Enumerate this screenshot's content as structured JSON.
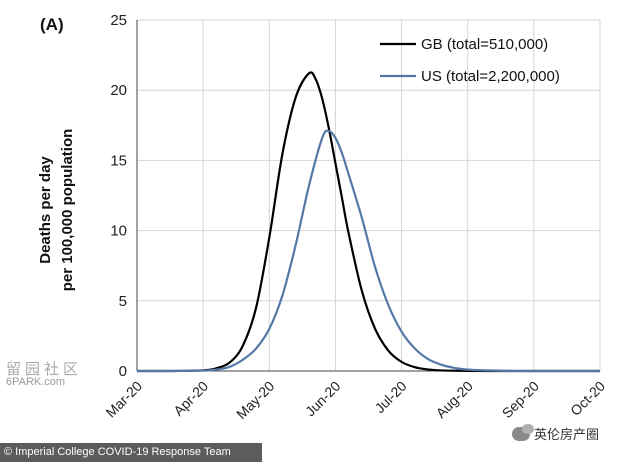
{
  "chart_data": {
    "type": "line",
    "panel_label": "(A)",
    "ylabel_line1": "Deaths per day",
    "ylabel_line2": "per 100,000 population",
    "ylim": [
      0,
      25
    ],
    "y_ticks": [
      "0",
      "5",
      "10",
      "15",
      "20",
      "25"
    ],
    "x_ticks": [
      "Mar-20",
      "Apr-20",
      "May-20",
      "Jun-20",
      "Jul-20",
      "Aug-20",
      "Sep-20",
      "Oct-20"
    ],
    "x_unit": "months since Mar-20",
    "grid": true,
    "legend_position": "top-right",
    "series": [
      {
        "name": "GB (total=510,000)",
        "color": "#000000",
        "x": [
          0,
          0.5,
          1.0,
          1.2,
          1.4,
          1.6,
          1.8,
          2.0,
          2.2,
          2.4,
          2.6,
          2.7,
          2.8,
          2.9,
          3.0,
          3.1,
          3.2,
          3.4,
          3.6,
          3.8,
          4.0,
          4.2,
          4.4,
          4.6,
          5.0,
          5.5,
          6.0,
          7.0
        ],
        "values": [
          0,
          0.0,
          0.05,
          0.2,
          0.6,
          1.8,
          4.5,
          9.5,
          15.5,
          19.5,
          21.2,
          20.8,
          19.4,
          17.3,
          14.8,
          12.3,
          9.8,
          5.7,
          3.0,
          1.45,
          0.65,
          0.27,
          0.11,
          0.04,
          0.01,
          0,
          0,
          0
        ]
      },
      {
        "name": "US (total=2,200,000)",
        "color": "#5478a6",
        "x": [
          0,
          0.5,
          1.0,
          1.2,
          1.4,
          1.6,
          1.8,
          2.0,
          2.2,
          2.4,
          2.6,
          2.8,
          2.9,
          3.0,
          3.1,
          3.2,
          3.4,
          3.6,
          3.8,
          4.0,
          4.2,
          4.4,
          4.6,
          4.8,
          5.0,
          5.5,
          6.0,
          7.0
        ],
        "values": [
          0,
          0.0,
          0.03,
          0.1,
          0.3,
          0.8,
          1.6,
          3.0,
          5.4,
          9.0,
          13.2,
          16.6,
          17.1,
          16.6,
          15.5,
          14.0,
          10.9,
          7.4,
          4.7,
          2.8,
          1.6,
          0.85,
          0.45,
          0.22,
          0.1,
          0.02,
          0,
          0
        ]
      }
    ]
  },
  "watermarks": {
    "credit": "© Imperial College COVID-19 Response Team",
    "site_cn": "留园社区",
    "site_en": "6PARK.com",
    "account": "英伦房产圈"
  }
}
